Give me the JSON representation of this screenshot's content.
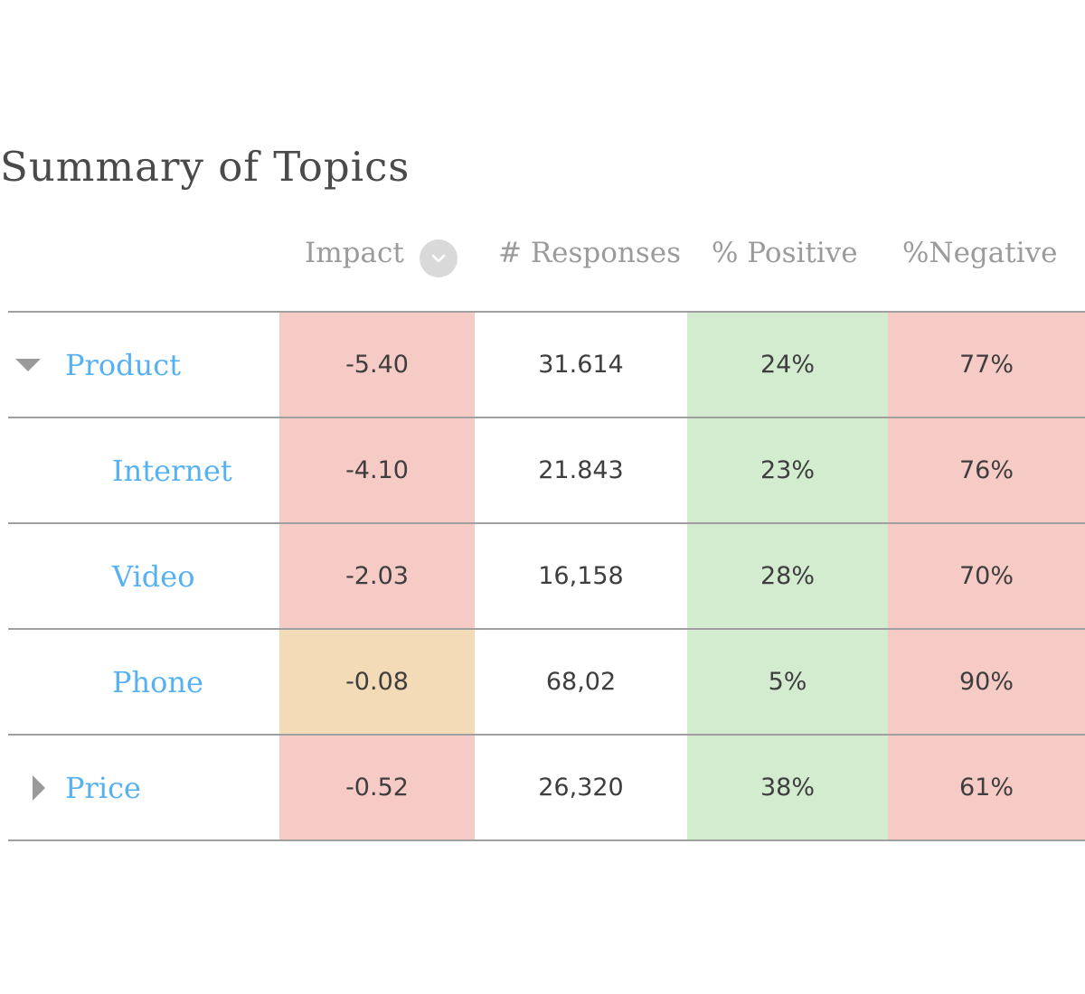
{
  "title": "Summary of Topics",
  "columns": {
    "impact": "Impact",
    "responses": "# Responses",
    "positive": "% Positive",
    "negative": "%Negative"
  },
  "sort_icon": "chevron-down-icon",
  "colors": {
    "impact_negative": "#f6cbc5",
    "impact_neutral": "#f3dbb7",
    "positive": "#d3ecd0",
    "negative": "#f6cbc5",
    "link": "#56b1f3"
  },
  "rows": [
    {
      "name": "Product",
      "level": 0,
      "toggle": "expanded",
      "impact": "-5.40",
      "impact_status": "negative",
      "responses": "31.614",
      "positive": "24%",
      "negative": "77%"
    },
    {
      "name": "Internet",
      "level": 1,
      "toggle": "none",
      "impact": "-4.10",
      "impact_status": "negative",
      "responses": "21.843",
      "positive": "23%",
      "negative": "76%"
    },
    {
      "name": "Video",
      "level": 1,
      "toggle": "none",
      "impact": "-2.03",
      "impact_status": "negative",
      "responses": "16,158",
      "positive": "28%",
      "negative": "70%"
    },
    {
      "name": "Phone",
      "level": 1,
      "toggle": "none",
      "impact": "-0.08",
      "impact_status": "neutral",
      "responses": "68,02",
      "positive": "5%",
      "negative": "90%"
    },
    {
      "name": "Price",
      "level": 0,
      "toggle": "collapsed",
      "impact": "-0.52",
      "impact_status": "negative",
      "responses": "26,320",
      "positive": "38%",
      "negative": "61%"
    }
  ]
}
